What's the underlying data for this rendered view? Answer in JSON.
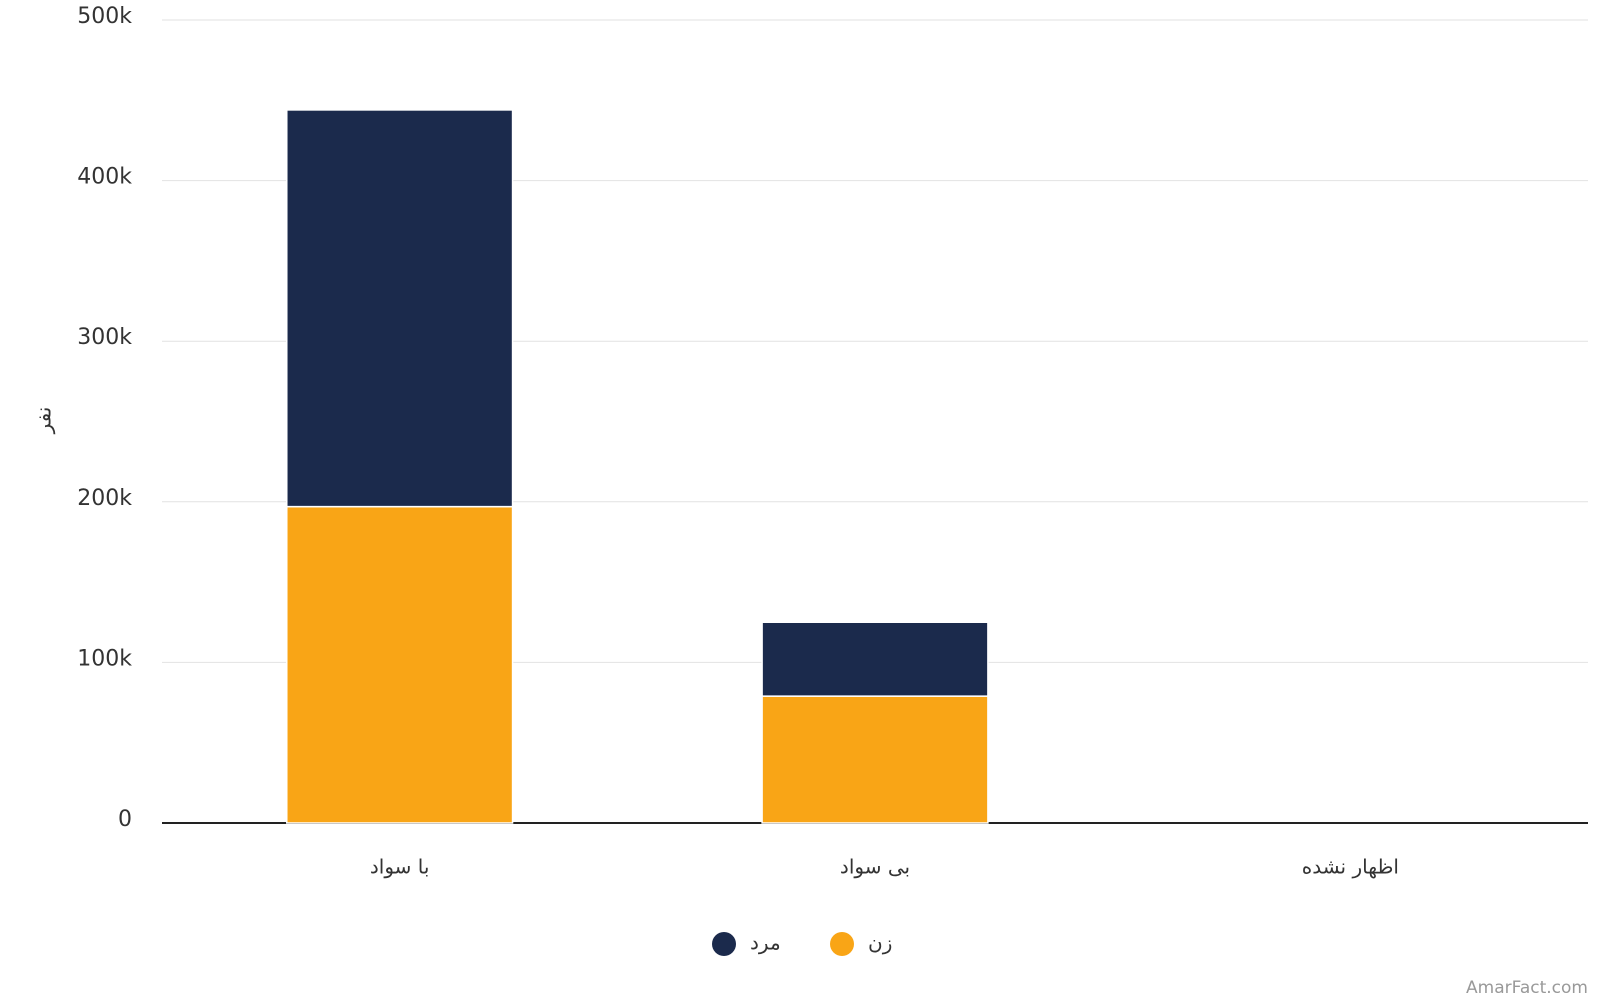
{
  "chart_data": {
    "type": "stacked_bar",
    "y_label": "نفر",
    "categories": [
      "با سواد",
      "بی سواد",
      "اظهار نشده"
    ],
    "series": [
      {
        "name": "زن",
        "color": "#f9a516",
        "values": [
          197000,
          79000,
          0
        ]
      },
      {
        "name": "مرد",
        "color": "#1b2a4c",
        "values": [
          247000,
          46000,
          0
        ]
      }
    ],
    "ylim": [
      0,
      500000
    ],
    "yticks": [
      0,
      {
        "value": 100000,
        "label": "100k"
      },
      {
        "value": 200000,
        "label": "200k"
      },
      {
        "value": 300000,
        "label": "300k"
      },
      {
        "value": 400000,
        "label": "400k"
      },
      {
        "value": 500000,
        "label": "500k"
      }
    ],
    "grid": true,
    "legend": "bottom"
  },
  "watermark": "AmarFact.com"
}
